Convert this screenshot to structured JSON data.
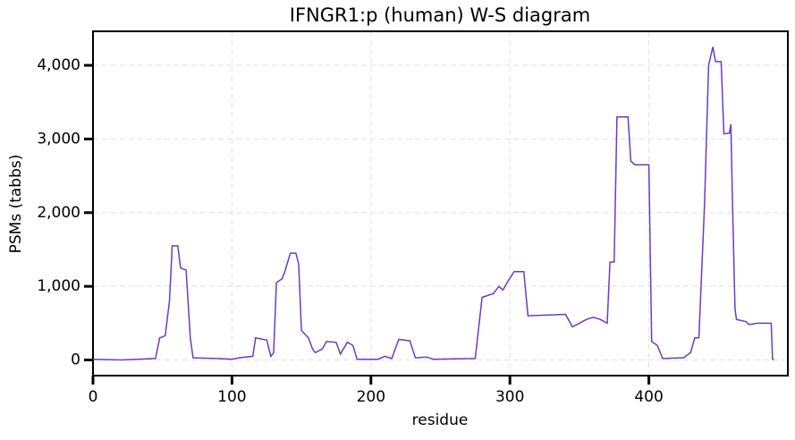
{
  "chart_data": {
    "type": "line",
    "title": "IFNGR1:p (human) W-S diagram",
    "xlabel": "residue",
    "ylabel": "PSMs (tabbs)",
    "color": "#6a3bc9",
    "grid": true,
    "x": [
      0,
      20,
      45,
      48,
      52,
      55,
      57,
      61,
      63,
      67,
      70,
      72,
      90,
      100,
      105,
      115,
      117,
      125,
      128,
      130,
      132,
      136,
      138,
      142,
      146,
      148,
      150,
      155,
      158,
      160,
      165,
      168,
      175,
      178,
      183,
      187,
      190,
      205,
      210,
      215,
      220,
      228,
      232,
      240,
      245,
      275,
      280,
      288,
      292,
      295,
      298,
      303,
      310,
      313,
      340,
      345,
      350,
      355,
      360,
      365,
      370,
      372,
      375,
      377,
      385,
      387,
      390,
      400,
      402,
      406,
      410,
      425,
      430,
      433,
      436,
      440,
      443,
      446,
      448,
      452,
      454,
      458,
      459,
      460,
      462,
      463,
      470,
      472,
      478,
      488,
      489,
      490
    ],
    "values": [
      10,
      0,
      20,
      300,
      330,
      800,
      1550,
      1550,
      1250,
      1220,
      300,
      30,
      20,
      10,
      30,
      50,
      300,
      270,
      50,
      100,
      1050,
      1100,
      1200,
      1450,
      1450,
      1300,
      400,
      300,
      150,
      100,
      150,
      250,
      240,
      80,
      240,
      200,
      10,
      10,
      50,
      20,
      280,
      260,
      30,
      40,
      10,
      20,
      850,
      900,
      1000,
      950,
      1050,
      1200,
      1200,
      600,
      620,
      450,
      500,
      550,
      580,
      550,
      500,
      1330,
      1330,
      3300,
      3300,
      2700,
      2650,
      2650,
      250,
      200,
      20,
      30,
      100,
      300,
      300,
      2100,
      4000,
      4250,
      4050,
      4050,
      3070,
      3080,
      3200,
      2300,
      700,
      550,
      520,
      480,
      500,
      500,
      10,
      0
    ],
    "xlim": [
      0,
      500
    ],
    "ylim": [
      -212,
      4462
    ],
    "xticks": [
      0,
      100,
      200,
      300,
      400
    ],
    "yticks": [
      0,
      {
        "value": 1000,
        "label": "1,000"
      },
      {
        "value": 2000,
        "label": "2,000"
      },
      {
        "value": 3000,
        "label": "3,000"
      },
      {
        "value": 4000,
        "label": "4,000"
      }
    ]
  }
}
